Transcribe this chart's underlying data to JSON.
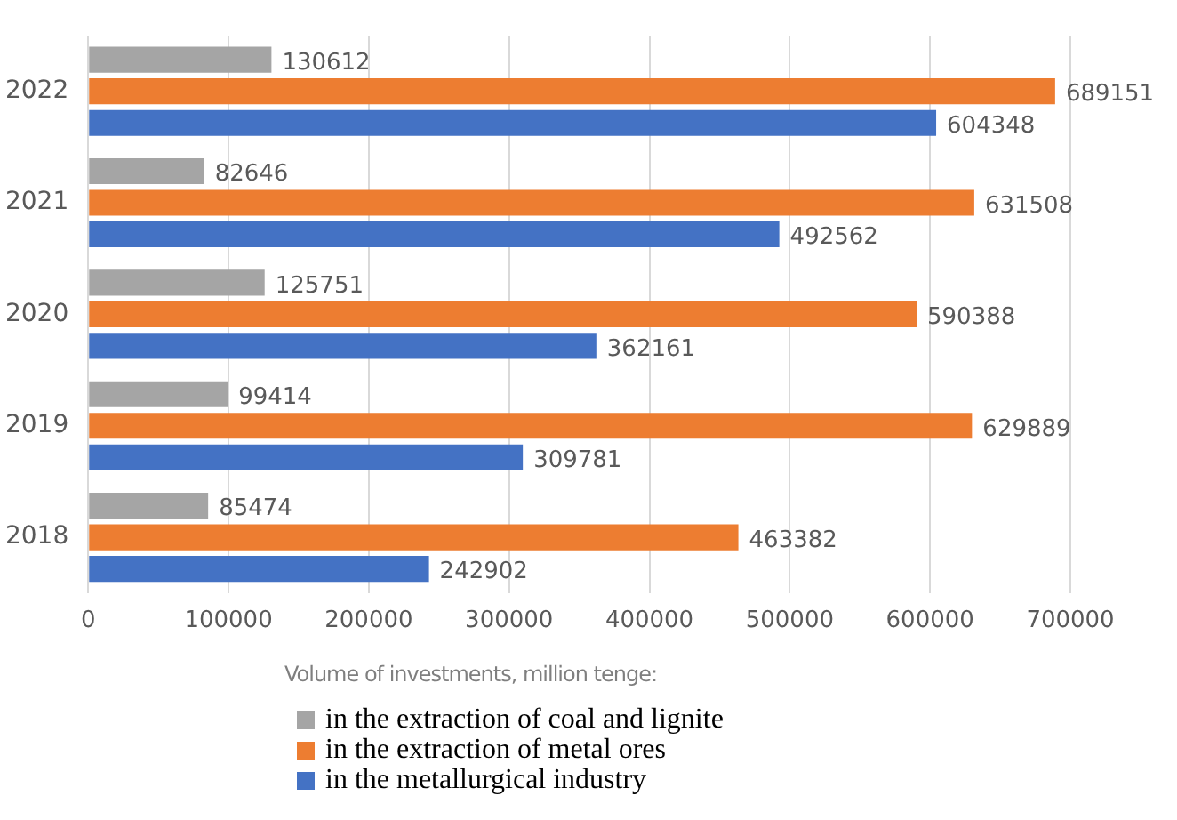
{
  "chart_data": {
    "type": "bar",
    "orientation": "horizontal",
    "categories": [
      "2022",
      "2021",
      "2020",
      "2019",
      "2018"
    ],
    "series": [
      {
        "name": "in the extraction of coal and lignite",
        "color": "#a5a5a5",
        "values": [
          130612,
          82646,
          125751,
          99414,
          85474
        ]
      },
      {
        "name": "in the extraction of metal ores",
        "color": "#ed7d31",
        "values": [
          689151,
          631508,
          590388,
          629889,
          463382
        ]
      },
      {
        "name": "in the metallurgical industry",
        "color": "#4472c4",
        "values": [
          604348,
          492562,
          362161,
          309781,
          242902
        ]
      }
    ],
    "xlim": [
      0,
      700000
    ],
    "xticks": [
      0,
      100000,
      200000,
      300000,
      400000,
      500000,
      600000,
      700000
    ],
    "grid": "x",
    "legend": "bottom",
    "legend_title": "Volume of investments, million tenge:",
    "data_labels": true
  }
}
